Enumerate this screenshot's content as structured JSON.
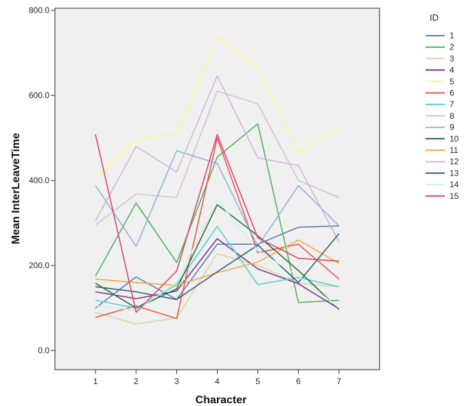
{
  "chart_data": {
    "type": "line",
    "xlabel": "Character",
    "ylabel": "Mean InterLeaveTime",
    "x": [
      1,
      2,
      3,
      4,
      5,
      6,
      7
    ],
    "x_ticks": [
      "1",
      "2",
      "3",
      "4",
      "5",
      "6",
      "7"
    ],
    "y_ticks": [
      "0.0",
      "200.0",
      "400.0",
      "600.0",
      "800.0"
    ],
    "ylim": [
      -45,
      805
    ],
    "xlim": [
      0,
      8
    ],
    "grid": false,
    "background": "#f0f0f0",
    "legend": {
      "title": "ID",
      "placement": "right"
    },
    "series": [
      {
        "name": "1",
        "color": "#5a7ab5",
        "values": [
          100,
          173,
          120,
          250,
          250,
          290,
          293
        ]
      },
      {
        "name": "2",
        "color": "#4ab45a",
        "values": [
          175,
          347,
          207,
          455,
          533,
          113,
          118
        ]
      },
      {
        "name": "3",
        "color": "#d8d2a8",
        "values": [
          90,
          62,
          77,
          228,
          200,
          158,
          150
        ]
      },
      {
        "name": "4",
        "color": "#7b3294",
        "values": [
          138,
          122,
          140,
          263,
          192,
          157,
          98
        ]
      },
      {
        "name": "5",
        "color": "#fafa8c",
        "values": [
          410,
          496,
          510,
          738,
          665,
          465,
          527
        ]
      },
      {
        "name": "6",
        "color": "#e8554e",
        "values": [
          78,
          105,
          75,
          500,
          230,
          250,
          168
        ]
      },
      {
        "name": "7",
        "color": "#4fd0d0",
        "values": [
          118,
          100,
          155,
          292,
          155,
          172,
          150
        ]
      },
      {
        "name": "8",
        "color": "#cfc3c6",
        "values": [
          295,
          368,
          360,
          610,
          580,
          400,
          360
        ]
      },
      {
        "name": "9",
        "color": "#8fb4d8",
        "values": [
          388,
          245,
          470,
          440,
          245,
          388,
          293
        ]
      },
      {
        "name": "10",
        "color": "#2e6b3a",
        "values": [
          158,
          100,
          145,
          343,
          270,
          188,
          97
        ]
      },
      {
        "name": "11",
        "color": "#f5a840",
        "values": [
          168,
          160,
          153,
          183,
          208,
          260,
          205
        ]
      },
      {
        "name": "12",
        "color": "#d4b0e0",
        "values": [
          305,
          480,
          420,
          646,
          453,
          435,
          255
        ]
      },
      {
        "name": "13",
        "color": "#2f5f6f",
        "values": [
          150,
          138,
          120,
          185,
          248,
          160,
          275
        ]
      },
      {
        "name": "14",
        "color": "#ccf2e6",
        "values": [
          105,
          95,
          160,
          355,
          235,
          175,
          100
        ]
      },
      {
        "name": "15",
        "color": "#d6456e",
        "values": [
          508,
          90,
          187,
          508,
          265,
          217,
          210
        ]
      }
    ]
  }
}
